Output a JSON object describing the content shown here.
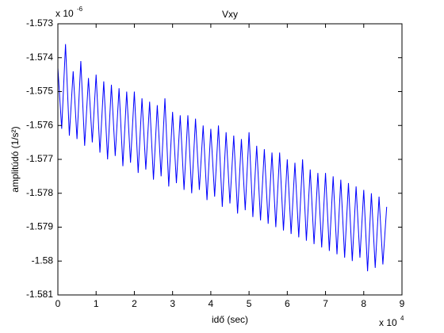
{
  "chart_data": {
    "type": "line",
    "title": "Vxy",
    "x_label": "idő (sec)",
    "y_label": "amplitúdó (1/s²)",
    "x_multiplier": {
      "base": "x 10",
      "exponent": "4"
    },
    "y_multiplier": {
      "base": "x 10",
      "exponent": "-6"
    },
    "xlim": [
      0,
      9
    ],
    "xticks": [
      0,
      1,
      2,
      3,
      4,
      5,
      6,
      7,
      8,
      9
    ],
    "ylim": [
      -1.581,
      -1.573
    ],
    "yticks": [
      -1.573,
      -1.574,
      -1.575,
      -1.576,
      -1.577,
      -1.578,
      -1.579,
      -1.58,
      -1.581
    ],
    "grid": false,
    "x": [
      0,
      0.1,
      0.2,
      0.3,
      0.4,
      0.5,
      0.6,
      0.7,
      0.8,
      0.9,
      1.0,
      1.1,
      1.2,
      1.3,
      1.4,
      1.5,
      1.6,
      1.7,
      1.8,
      1.9,
      2.0,
      2.1,
      2.2,
      2.3,
      2.4,
      2.5,
      2.6,
      2.7,
      2.8,
      2.9,
      3.0,
      3.1,
      3.2,
      3.3,
      3.4,
      3.5,
      3.6,
      3.7,
      3.8,
      3.9,
      4.0,
      4.1,
      4.2,
      4.3,
      4.4,
      4.5,
      4.6,
      4.7,
      4.8,
      4.9,
      5.0,
      5.1,
      5.2,
      5.3,
      5.4,
      5.5,
      5.6,
      5.7,
      5.8,
      5.9,
      6.0,
      6.1,
      6.2,
      6.3,
      6.4,
      6.5,
      6.6,
      6.7,
      6.8,
      6.9,
      7.0,
      7.1,
      7.2,
      7.3,
      7.4,
      7.5,
      7.6,
      7.7,
      7.8,
      7.9,
      8.0,
      8.1,
      8.2,
      8.3,
      8.4,
      8.5,
      8.6
    ],
    "series": [
      {
        "color": "#0000ff",
        "values": [
          -1.5743,
          -1.5761,
          -1.5736,
          -1.5763,
          -1.5744,
          -1.5764,
          -1.5741,
          -1.5766,
          -1.5746,
          -1.5765,
          -1.5745,
          -1.5768,
          -1.5747,
          -1.577,
          -1.5748,
          -1.5769,
          -1.5749,
          -1.5772,
          -1.575,
          -1.5771,
          -1.575,
          -1.5774,
          -1.5752,
          -1.5773,
          -1.5753,
          -1.5776,
          -1.5754,
          -1.5775,
          -1.5752,
          -1.5778,
          -1.5756,
          -1.5777,
          -1.5757,
          -1.5779,
          -1.5757,
          -1.578,
          -1.5758,
          -1.5779,
          -1.576,
          -1.5782,
          -1.5761,
          -1.5781,
          -1.576,
          -1.5784,
          -1.5762,
          -1.5783,
          -1.5763,
          -1.5786,
          -1.5764,
          -1.5785,
          -1.5762,
          -1.5787,
          -1.5766,
          -1.5788,
          -1.5767,
          -1.5789,
          -1.5768,
          -1.579,
          -1.5768,
          -1.5791,
          -1.577,
          -1.5792,
          -1.5771,
          -1.5793,
          -1.577,
          -1.5794,
          -1.5773,
          -1.5795,
          -1.5774,
          -1.5796,
          -1.5774,
          -1.5797,
          -1.5775,
          -1.5798,
          -1.5776,
          -1.5799,
          -1.5777,
          -1.58,
          -1.5778,
          -1.5799,
          -1.5779,
          -1.5803,
          -1.578,
          -1.5802,
          -1.5781,
          -1.5801,
          -1.5784
        ]
      }
    ]
  }
}
